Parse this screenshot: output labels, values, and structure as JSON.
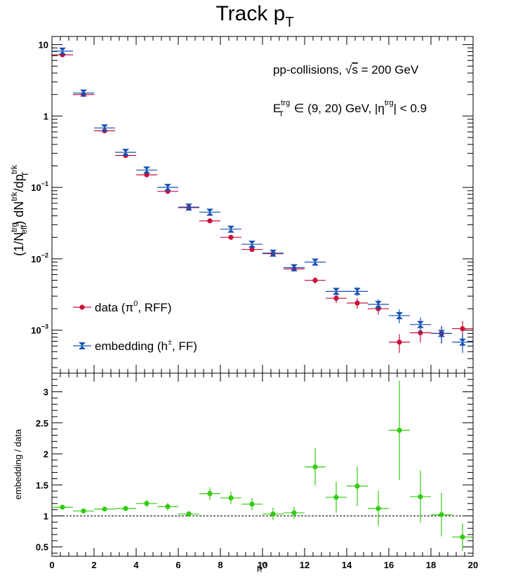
{
  "chart_data": [
    {
      "type": "scatter",
      "title": "Track p",
      "title_sub": "T",
      "ylabel": {
        "p1": "(1/N",
        "p1_sup": "trg",
        "p1_sub": "eff",
        "p2": ") dN",
        "p2_sup": "trk",
        "p3": "/dp",
        "p3_sup": "trk",
        "p3_sub": "T"
      },
      "y_scale": "log",
      "xlim": [
        0,
        20
      ],
      "ylim": [
        0.00025,
        13
      ],
      "y_ticks": [
        {
          "value": 10,
          "label": "10"
        },
        {
          "value": 1,
          "label": "1"
        },
        {
          "value": 0.1,
          "base": "10",
          "exp": "−1"
        },
        {
          "value": 0.01,
          "base": "10",
          "exp": "−2"
        },
        {
          "value": 0.001,
          "base": "10",
          "exp": "−3"
        }
      ],
      "annotations": {
        "line1_a": "pp-collisions, ",
        "line1_sqrt": "√",
        "line1_s": "s",
        "line1_b": " = 200 GeV",
        "line2_E": "E",
        "line2_E_sup": "trg",
        "line2_E_sub": "T",
        "line2_a": " ∈ (9, 20) GeV, |η",
        "line2_eta_sup": "trg",
        "line2_b": "| < 0.9"
      },
      "legend_position": "bottom-left",
      "series": [
        {
          "legend": "data (π",
          "legend_sup": "0",
          "legend_end": ", RFF)",
          "color": "#c8103a",
          "marker": "circle",
          "x": [
            0.5,
            1.5,
            2.5,
            3.5,
            4.5,
            5.5,
            6.5,
            7.5,
            8.5,
            9.5,
            10.5,
            11.5,
            12.5,
            13.5,
            14.5,
            15.5,
            16.5,
            17.5,
            18.5,
            19.5
          ],
          "y": [
            7.2,
            2.0,
            0.62,
            0.28,
            0.15,
            0.088,
            0.052,
            0.034,
            0.02,
            0.0135,
            0.0118,
            0.0072,
            0.005,
            0.0028,
            0.0024,
            0.002,
            0.00068,
            0.00092,
            0.0009,
            0.00105
          ],
          "yerr": [
            0.15,
            0.04,
            0.015,
            0.008,
            0.005,
            0.003,
            0.002,
            0.0015,
            0.001,
            0.0008,
            0.0007,
            0.0006,
            0.0005,
            0.0004,
            0.0004,
            0.00035,
            0.0002,
            0.00025,
            0.00025,
            0.0003
          ]
        },
        {
          "legend": "embedding (h",
          "legend_sup": "±",
          "legend_end": ", FF)",
          "color": "#1450b4",
          "marker": "star",
          "x": [
            0.5,
            1.5,
            2.5,
            3.5,
            4.5,
            5.5,
            6.5,
            7.5,
            8.5,
            9.5,
            10.5,
            11.5,
            12.5,
            13.5,
            14.5,
            15.5,
            16.5,
            17.5,
            18.5,
            19.5
          ],
          "y": [
            8.1,
            2.1,
            0.68,
            0.31,
            0.175,
            0.1,
            0.053,
            0.045,
            0.026,
            0.016,
            0.012,
            0.0075,
            0.009,
            0.0035,
            0.0035,
            0.0023,
            0.0016,
            0.0012,
            0.0009,
            0.00068
          ],
          "yerr": [
            0.15,
            0.04,
            0.015,
            0.008,
            0.005,
            0.003,
            0.002,
            0.0017,
            0.0012,
            0.0009,
            0.0007,
            0.0006,
            0.0008,
            0.0004,
            0.0005,
            0.0004,
            0.00035,
            0.0003,
            0.00025,
            0.0002
          ]
        }
      ]
    },
    {
      "type": "scatter",
      "ylabel": "embedding / data",
      "xlabel": "p",
      "xlabel_sup": "trk",
      "xlabel_sub": "T",
      "xlim": [
        0,
        20
      ],
      "ylim": [
        0.35,
        3.3
      ],
      "x_ticks": [
        0,
        2,
        4,
        6,
        8,
        10,
        12,
        14,
        16,
        18,
        20
      ],
      "y_ticks": [
        0.5,
        1,
        1.5,
        2,
        2.5,
        3
      ],
      "reference_line": 1,
      "series": [
        {
          "color": "#33cc11",
          "marker": "circle",
          "x": [
            0.5,
            1.5,
            2.5,
            3.5,
            4.5,
            5.5,
            6.5,
            7.5,
            8.5,
            9.5,
            10.5,
            11.5,
            12.5,
            13.5,
            14.5,
            15.5,
            16.5,
            17.5,
            18.5,
            19.5
          ],
          "y": [
            1.14,
            1.08,
            1.11,
            1.12,
            1.2,
            1.15,
            1.03,
            1.36,
            1.29,
            1.19,
            1.03,
            1.05,
            1.79,
            1.3,
            1.48,
            1.12,
            2.38,
            1.31,
            1.02,
            0.66
          ],
          "yerr": [
            0.03,
            0.03,
            0.03,
            0.04,
            0.06,
            0.06,
            0.05,
            0.1,
            0.1,
            0.1,
            0.1,
            0.1,
            0.3,
            0.25,
            0.32,
            0.28,
            0.8,
            0.42,
            0.35,
            0.22
          ]
        }
      ]
    }
  ]
}
